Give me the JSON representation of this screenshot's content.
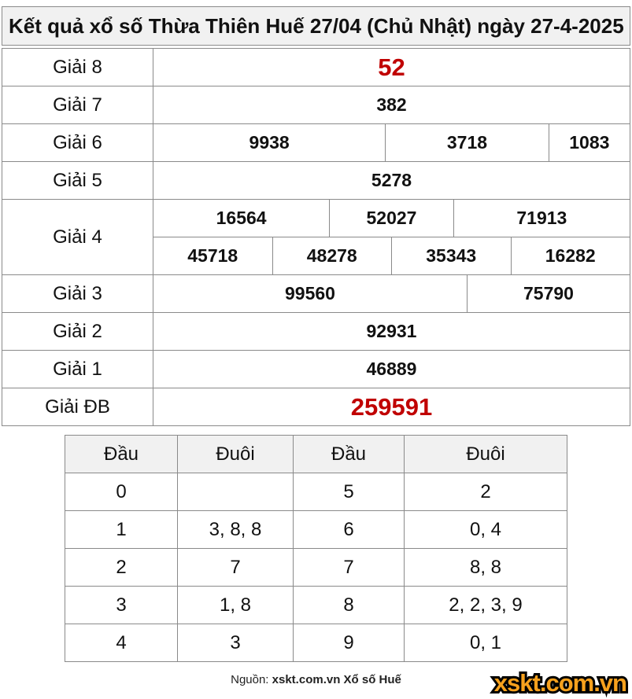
{
  "header": {
    "title": "Kết quả xổ số Thừa Thiên Huế 27/04 (Chủ Nhật) ngày 27-4-2025"
  },
  "colors": {
    "highlight_red": "#c00000",
    "logo_orange": "#f7a11d",
    "header_background": "#f1f1f1",
    "border_gray": "#8a8a8a"
  },
  "prize_table": {
    "rows": [
      {
        "label": "Giải 8",
        "values": [
          "52"
        ]
      },
      {
        "label": "Giải 7",
        "values": [
          "382"
        ]
      },
      {
        "label": "Giải 6",
        "values": [
          "9938",
          "3718",
          "1083"
        ]
      },
      {
        "label": "Giải 5",
        "values": [
          "5278"
        ]
      },
      {
        "label": "Giải 4",
        "values_top": [
          "16564",
          "52027",
          "71913"
        ],
        "values_bottom": [
          "45718",
          "48278",
          "35343",
          "16282"
        ]
      },
      {
        "label": "Giải 3",
        "values": [
          "99560",
          "75790"
        ]
      },
      {
        "label": "Giải 2",
        "values": [
          "92931"
        ]
      },
      {
        "label": "Giải 1",
        "values": [
          "46889"
        ]
      },
      {
        "label": "Giải ĐB",
        "values": [
          "259591"
        ]
      }
    ]
  },
  "head_tail_table": {
    "headers": [
      "Đầu",
      "Đuôi",
      "Đầu",
      "Đuôi"
    ],
    "rows": [
      [
        "0",
        "",
        "5",
        "2"
      ],
      [
        "1",
        "3, 8, 8",
        "6",
        "0, 4"
      ],
      [
        "2",
        "7",
        "7",
        "8, 8"
      ],
      [
        "3",
        "1, 8",
        "8",
        "2, 2, 3, 9"
      ],
      [
        "4",
        "3",
        "9",
        "0, 1"
      ]
    ]
  },
  "footer": {
    "source_prefix": "Nguồn: ",
    "source_name": "xskt.com.vn Xổ số Huế",
    "logo_text": "xskt.com.vn"
  }
}
